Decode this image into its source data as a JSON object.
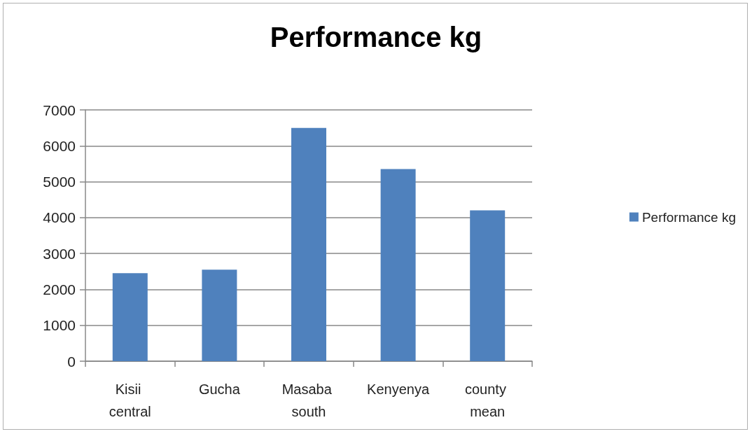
{
  "chart_data": {
    "type": "bar",
    "title": "Performance kg",
    "categories": [
      "Kisii central",
      "Gucha",
      "Masaba south",
      "Kenyenya",
      "county mean"
    ],
    "series": [
      {
        "name": "Performance kg",
        "color": "#4f81bd",
        "values": [
          2450,
          2550,
          6500,
          5350,
          4200
        ]
      }
    ],
    "ylim": [
      0,
      7000
    ],
    "yticks": [
      0,
      1000,
      2000,
      3000,
      4000,
      5000,
      6000,
      7000
    ],
    "grid": "y",
    "legend": "right"
  }
}
